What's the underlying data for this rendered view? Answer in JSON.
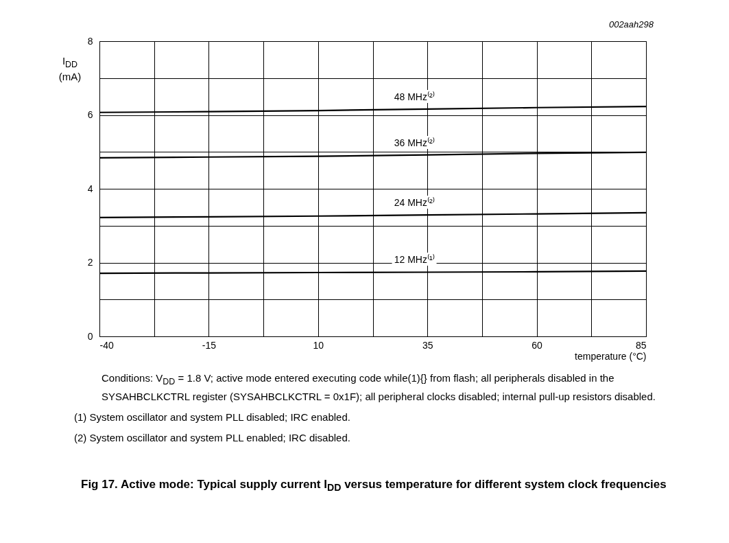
{
  "chart_data": {
    "type": "line",
    "title": "Fig 17.  Active mode: Typical supply current I$_{DD}$ versus temperature for different system clock frequencies",
    "xlabel": "temperature (°C)",
    "ylabel": "I$_{DD}$ (mA)",
    "x": [
      -40,
      -15,
      10,
      35,
      60,
      85
    ],
    "series": [
      {
        "name": "48 MHz⁽²⁾",
        "color": "#000000",
        "values": [
          6.07,
          6.09,
          6.12,
          6.16,
          6.2,
          6.23
        ]
      },
      {
        "name": "36 MHz⁽²⁾",
        "color": "#000000",
        "values": [
          4.84,
          4.86,
          4.88,
          4.92,
          4.96,
          4.99
        ]
      },
      {
        "name": "24 MHz⁽²⁾",
        "color": "#000000",
        "values": [
          3.22,
          3.24,
          3.26,
          3.29,
          3.32,
          3.35
        ]
      },
      {
        "name": "12 MHz⁽¹⁾",
        "color": "#000000",
        "values": [
          1.71,
          1.72,
          1.73,
          1.74,
          1.75,
          1.77
        ]
      }
    ],
    "xlim": [
      -40,
      85
    ],
    "xticks": [
      -40,
      {
        "value": -27.5,
        "label": null
      },
      -15,
      {
        "value": -2.5,
        "label": null
      },
      10,
      {
        "value": 22.5,
        "label": null
      },
      35,
      {
        "value": 47.5,
        "label": null
      },
      60,
      {
        "value": 72.5,
        "label": null
      },
      85
    ],
    "ylim": [
      0,
      8
    ],
    "yticks": [
      0,
      {
        "value": 1,
        "label": null
      },
      2,
      {
        "value": 3,
        "label": null
      },
      4,
      {
        "value": 5,
        "label": null
      },
      6,
      {
        "value": 7,
        "label": null
      },
      8
    ],
    "grid": true,
    "legend": false,
    "marker": "none",
    "line_style": "solid",
    "annotations": [
      "002aah298",
      "Conditions: V$_{DD}$ = 1.8 V; active mode entered executing code while(1){} from flash; all peripherals disabled in the SYSAHBCLKCTRL register (SYSAHBCLKCTRL = 0x1F); all peripheral clocks disabled; internal pull-up resistors disabled.",
      "(1)  System oscillator and system PLL disabled; IRC enabled.",
      "(2)  System oscillator and system PLL enabled; IRC disabled."
    ]
  }
}
